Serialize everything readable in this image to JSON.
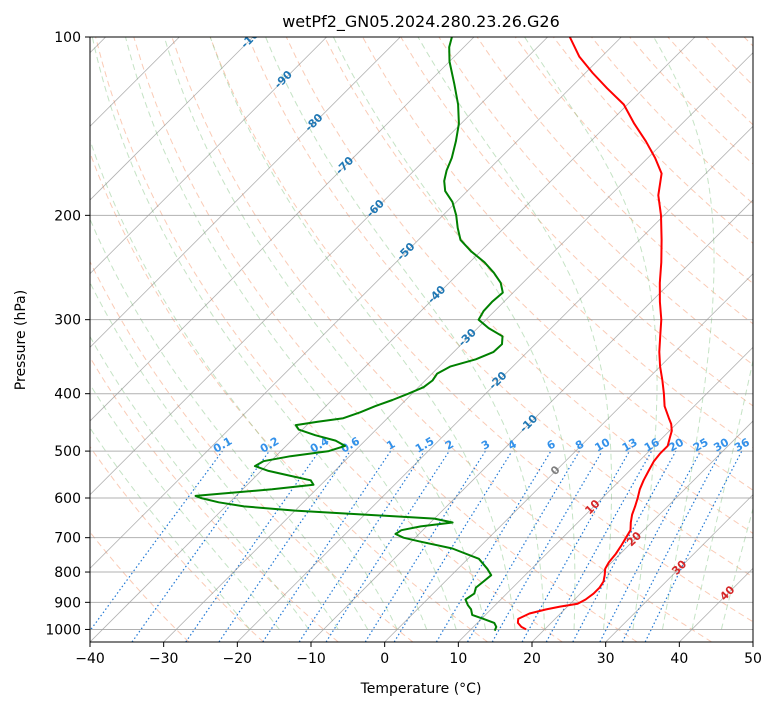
{
  "chart_data": {
    "type": "line",
    "title": "wetPf2_GN05.2024.280.23.26.G26",
    "xlabel": "Temperature (°C)",
    "ylabel": "Pressure (hPa)",
    "xlim": [
      -40,
      50
    ],
    "ylim": [
      1050,
      100
    ],
    "y_scale": "log",
    "x_ticks": [
      "−40",
      "−30",
      "−20",
      "−10",
      "0",
      "10",
      "20",
      "30",
      "40",
      "50"
    ],
    "x_tick_values": [
      -40,
      -30,
      -20,
      -10,
      0,
      10,
      20,
      30,
      40,
      50
    ],
    "y_ticks": [
      "100",
      "200",
      "300",
      "400",
      "500",
      "600",
      "700",
      "800",
      "900",
      "1000"
    ],
    "y_tick_values": [
      100,
      200,
      300,
      400,
      500,
      600,
      700,
      800,
      900,
      1000
    ],
    "grid": true,
    "skew": true,
    "series": [
      {
        "kind": "temperature",
        "color": "#ff0000",
        "points": [
          [
            1000,
            17.5
          ],
          [
            990,
            16.5
          ],
          [
            975,
            15.5
          ],
          [
            960,
            15.0
          ],
          [
            940,
            15.8
          ],
          [
            925,
            17.5
          ],
          [
            915,
            19.0
          ],
          [
            905,
            21.0
          ],
          [
            890,
            21.5
          ],
          [
            870,
            21.8
          ],
          [
            850,
            21.8
          ],
          [
            830,
            21.5
          ],
          [
            810,
            20.8
          ],
          [
            790,
            20.0
          ],
          [
            770,
            19.6
          ],
          [
            745,
            19.4
          ],
          [
            720,
            19.0
          ],
          [
            700,
            18.6
          ],
          [
            680,
            18.2
          ],
          [
            660,
            17.2
          ],
          [
            640,
            16.3
          ],
          [
            620,
            15.6
          ],
          [
            600,
            14.8
          ],
          [
            580,
            13.9
          ],
          [
            560,
            13.2
          ],
          [
            540,
            12.6
          ],
          [
            520,
            12.0
          ],
          [
            505,
            11.8
          ],
          [
            490,
            11.8
          ],
          [
            475,
            11.0
          ],
          [
            462,
            10.3
          ],
          [
            450,
            9.3
          ],
          [
            440,
            8.2
          ],
          [
            420,
            6.0
          ],
          [
            400,
            4.2
          ],
          [
            380,
            2.2
          ],
          [
            360,
            0.0
          ],
          [
            340,
            -2.1
          ],
          [
            320,
            -4.1
          ],
          [
            300,
            -6.2
          ],
          [
            280,
            -8.8
          ],
          [
            260,
            -11.4
          ],
          [
            240,
            -14.0
          ],
          [
            220,
            -17.0
          ],
          [
            200,
            -20.4
          ],
          [
            185,
            -23.5
          ],
          [
            170,
            -26.0
          ],
          [
            160,
            -29.0
          ],
          [
            150,
            -32.5
          ],
          [
            140,
            -36.5
          ],
          [
            130,
            -40.5
          ],
          [
            122,
            -45.0
          ],
          [
            115,
            -49.0
          ],
          [
            108,
            -53.0
          ],
          [
            100,
            -57.0
          ]
        ]
      },
      {
        "kind": "dewpoint",
        "color": "#008000",
        "points": [
          [
            1005,
            13.4
          ],
          [
            990,
            13.1
          ],
          [
            975,
            12.3
          ],
          [
            960,
            10.3
          ],
          [
            945,
            8.2
          ],
          [
            925,
            7.3
          ],
          [
            910,
            6.3
          ],
          [
            890,
            5.2
          ],
          [
            870,
            5.6
          ],
          [
            850,
            5.0
          ],
          [
            830,
            5.2
          ],
          [
            810,
            5.4
          ],
          [
            790,
            4.0
          ],
          [
            760,
            1.5
          ],
          [
            730,
            -3.5
          ],
          [
            710,
            -9.0
          ],
          [
            700,
            -11.6
          ],
          [
            690,
            -13.2
          ],
          [
            680,
            -12.9
          ],
          [
            670,
            -10.8
          ],
          [
            660,
            -7.0
          ],
          [
            650,
            -10.0
          ],
          [
            640,
            -20.0
          ],
          [
            630,
            -30.0
          ],
          [
            620,
            -37.5
          ],
          [
            610,
            -41.5
          ],
          [
            600,
            -44.5
          ],
          [
            595,
            -45.5
          ],
          [
            590,
            -42.5
          ],
          [
            580,
            -36.0
          ],
          [
            570,
            -31.0
          ],
          [
            560,
            -32.0
          ],
          [
            550,
            -35.5
          ],
          [
            540,
            -39.0
          ],
          [
            530,
            -41.5
          ],
          [
            520,
            -41.0
          ],
          [
            510,
            -38.0
          ],
          [
            500,
            -33.5
          ],
          [
            490,
            -32.0
          ],
          [
            480,
            -34.0
          ],
          [
            470,
            -37.5
          ],
          [
            460,
            -40.5
          ],
          [
            452,
            -41.5
          ],
          [
            446,
            -39.0
          ],
          [
            440,
            -36.0
          ],
          [
            430,
            -34.5
          ],
          [
            420,
            -33.3
          ],
          [
            410,
            -31.8
          ],
          [
            400,
            -30.5
          ],
          [
            390,
            -29.3
          ],
          [
            380,
            -29.0
          ],
          [
            370,
            -29.3
          ],
          [
            360,
            -28.5
          ],
          [
            350,
            -26.0
          ],
          [
            340,
            -24.6
          ],
          [
            330,
            -24.5
          ],
          [
            320,
            -25.5
          ],
          [
            310,
            -28.5
          ],
          [
            300,
            -31.0
          ],
          [
            290,
            -31.5
          ],
          [
            280,
            -31.6
          ],
          [
            270,
            -31.4
          ],
          [
            260,
            -33.0
          ],
          [
            250,
            -35.3
          ],
          [
            240,
            -38.0
          ],
          [
            230,
            -41.3
          ],
          [
            220,
            -44.3
          ],
          [
            210,
            -46.3
          ],
          [
            200,
            -48.2
          ],
          [
            190,
            -50.5
          ],
          [
            182,
            -53.0
          ],
          [
            175,
            -54.5
          ],
          [
            168,
            -55.6
          ],
          [
            160,
            -56.6
          ],
          [
            150,
            -58.3
          ],
          [
            140,
            -60.3
          ],
          [
            130,
            -63.0
          ],
          [
            120,
            -66.3
          ],
          [
            110,
            -70.0
          ],
          [
            104,
            -72.0
          ],
          [
            100,
            -73.0
          ]
        ]
      }
    ],
    "isotherm_labels": [
      "-100",
      "-90",
      "-80",
      "-70",
      "-60",
      "-50",
      "-40",
      "-30",
      "-20",
      "-10",
      "0",
      "10",
      "20",
      "30",
      "40"
    ],
    "mixing_ratio_labels": [
      "0.1",
      "0.2",
      "0.4",
      "0.6",
      "1",
      "1.5",
      "2",
      "3",
      "4",
      "6",
      "8",
      "10",
      "13",
      "16",
      "20",
      "25",
      "30",
      "36"
    ]
  }
}
